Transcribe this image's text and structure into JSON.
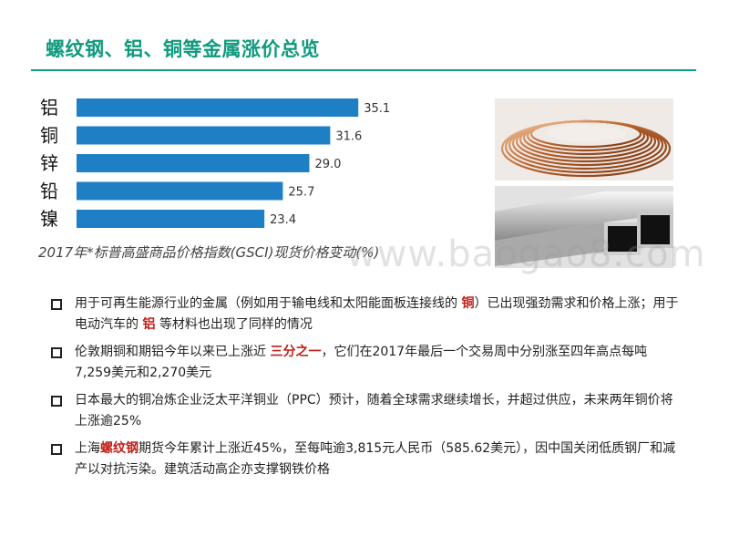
{
  "title": "螺纹钢、铝、铜等金属涨价总览",
  "chart_data": {
    "type": "bar",
    "orientation": "horizontal",
    "categories": [
      "铝",
      "铜",
      "锌",
      "铅",
      "镍"
    ],
    "values": [
      35.1,
      31.6,
      29.0,
      25.7,
      23.4
    ],
    "value_labels": [
      "35.1",
      "31.6",
      "29.0",
      "25.7",
      "23.4"
    ],
    "caption": "2017年*标普高盛商品价格指数(GSCI)现货价格变动(%)",
    "bar_color": "#1f7fc4",
    "xlim": [
      0,
      42
    ],
    "grid": false
  },
  "photos": {
    "top": "copper-wire-coil-icon",
    "bottom": "aluminum-square-tubes-icon"
  },
  "watermark": "www.baogao8.com",
  "bullets": [
    [
      "用于可再生能源行业的金属（例如用于输电线和太阳能面板连接线的 ",
      "铜",
      "）已出现强劲需求和价格上涨；用于电动汽车的 ",
      "铝",
      " 等材料也出现了同样的情况"
    ],
    [
      "伦敦期铜和期铝今年以来已上涨近 ",
      "三分之一",
      "，它们在2017年最后一个交易周中分别涨至四年高点每吨7,259美元和2,270美元"
    ],
    [
      "日本最大的铜冶炼企业泛太平洋铜业（PPC）预计，随着全球需求继续增长，并超过供应，未来两年铜价将上涨逾25%"
    ],
    [
      "上海",
      "螺纹钢",
      "期货今年累计上涨近45%，至每吨逾3,815元人民币（585.62美元），因中国关闭低质钢厂和减产以对抗污染。建筑活动高企亦支撑钢铁价格"
    ]
  ]
}
